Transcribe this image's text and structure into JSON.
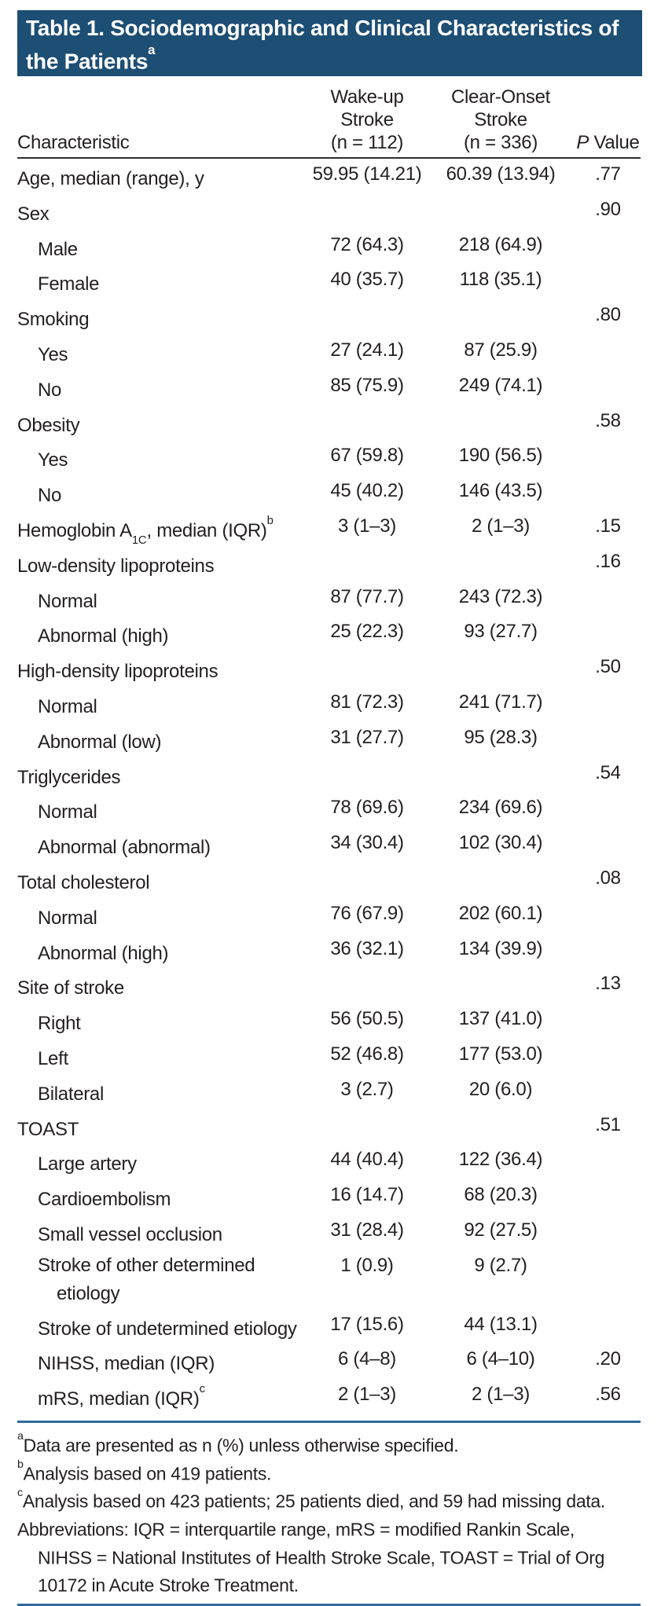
{
  "title": {
    "text": "Table 1. Sociodemographic and Clinical Characteristics of the Patients",
    "sup": "a"
  },
  "columns": {
    "characteristic": "Characteristic",
    "wakeup": [
      "Wake-up",
      "Stroke",
      "(n = 112)"
    ],
    "clear": [
      "Clear-Onset",
      "Stroke",
      "(n = 336)"
    ],
    "pvalue": {
      "italic": "P",
      "rest": " Value"
    }
  },
  "table": {
    "rows": [
      {
        "label": "Age, median (range), y",
        "c2": "59.95 (14.21)",
        "c3": "60.39 (13.94)",
        "p": ".77",
        "indent": 0
      },
      {
        "label": "Sex",
        "c2": "",
        "c3": "",
        "p": ".90",
        "indent": 0
      },
      {
        "label": "Male",
        "c2": "72 (64.3)",
        "c3": "218 (64.9)",
        "p": "",
        "indent": 1
      },
      {
        "label": "Female",
        "c2": "40 (35.7)",
        "c3": "118 (35.1)",
        "p": "",
        "indent": 1
      },
      {
        "label": "Smoking",
        "c2": "",
        "c3": "",
        "p": ".80",
        "indent": 0
      },
      {
        "label": "Yes",
        "c2": "27 (24.1)",
        "c3": "87 (25.9)",
        "p": "",
        "indent": 1
      },
      {
        "label": "No",
        "c2": "85 (75.9)",
        "c3": "249 (74.1)",
        "p": "",
        "indent": 1
      },
      {
        "label": "Obesity",
        "c2": "",
        "c3": "",
        "p": ".58",
        "indent": 0
      },
      {
        "label": "Yes",
        "c2": "67 (59.8)",
        "c3": "190 (56.5)",
        "p": "",
        "indent": 1
      },
      {
        "label": "No",
        "c2": "45 (40.2)",
        "c3": "146 (43.5)",
        "p": "",
        "indent": 1
      },
      {
        "label": "Hemoglobin A",
        "sub": "1C",
        "label2": ", median (IQR)",
        "sup": "b",
        "c2": "3 (1–3)",
        "c3": "2 (1–3)",
        "p": ".15",
        "indent": 0
      },
      {
        "label": "Low-density lipoproteins",
        "c2": "",
        "c3": "",
        "p": ".16",
        "indent": 0
      },
      {
        "label": "Normal",
        "c2": "87 (77.7)",
        "c3": "243 (72.3)",
        "p": "",
        "indent": 1
      },
      {
        "label": "Abnormal (high)",
        "c2": "25 (22.3)",
        "c3": "93 (27.7)",
        "p": "",
        "indent": 1
      },
      {
        "label": "High-density lipoproteins",
        "c2": "",
        "c3": "",
        "p": ".50",
        "indent": 0
      },
      {
        "label": "Normal",
        "c2": "81 (72.3)",
        "c3": "241 (71.7)",
        "p": "",
        "indent": 1
      },
      {
        "label": "Abnormal (low)",
        "c2": "31 (27.7)",
        "c3": "95 (28.3)",
        "p": "",
        "indent": 1
      },
      {
        "label": "Triglycerides",
        "c2": "",
        "c3": "",
        "p": ".54",
        "indent": 0
      },
      {
        "label": "Normal",
        "c2": "78 (69.6)",
        "c3": "234 (69.6)",
        "p": "",
        "indent": 1
      },
      {
        "label": "Abnormal (abnormal)",
        "c2": "34 (30.4)",
        "c3": "102 (30.4)",
        "p": "",
        "indent": 1
      },
      {
        "label": "Total cholesterol",
        "c2": "",
        "c3": "",
        "p": ".08",
        "indent": 0
      },
      {
        "label": "Normal",
        "c2": "76 (67.9)",
        "c3": "202 (60.1)",
        "p": "",
        "indent": 1
      },
      {
        "label": "Abnormal (high)",
        "c2": "36 (32.1)",
        "c3": "134 (39.9)",
        "p": "",
        "indent": 1
      },
      {
        "label": "Site of stroke",
        "c2": "",
        "c3": "",
        "p": ".13",
        "indent": 0
      },
      {
        "label": "Right",
        "c2": "56 (50.5)",
        "c3": "137 (41.0)",
        "p": "",
        "indent": 1
      },
      {
        "label": "Left",
        "c2": "52 (46.8)",
        "c3": "177 (53.0)",
        "p": "",
        "indent": 1
      },
      {
        "label": "Bilateral",
        "c2": "3 (2.7)",
        "c3": "20 (6.0)",
        "p": "",
        "indent": 1
      },
      {
        "label": "TOAST",
        "c2": "",
        "c3": "",
        "p": ".51",
        "indent": 0
      },
      {
        "label": "Large artery",
        "c2": "44 (40.4)",
        "c3": "122 (36.4)",
        "p": "",
        "indent": 1
      },
      {
        "label": "Cardioembolism",
        "c2": "16 (14.7)",
        "c3": "68 (20.3)",
        "p": "",
        "indent": 1
      },
      {
        "label": "Small vessel occlusion",
        "c2": "31 (28.4)",
        "c3": "92 (27.5)",
        "p": "",
        "indent": 1
      },
      {
        "label": "Stroke of other determined etiology",
        "c2": "1 (0.9)",
        "c3": "9 (2.7)",
        "p": "",
        "indent": 1
      },
      {
        "label": "Stroke of undetermined etiology",
        "c2": "17 (15.6)",
        "c3": "44 (13.1)",
        "p": "",
        "indent": 1
      },
      {
        "label": "NIHSS, median (IQR)",
        "c2": "6 (4–8)",
        "c3": "6 (4–10)",
        "p": ".20",
        "indent": 1
      },
      {
        "label": "mRS, median (IQR)",
        "sup": "c",
        "c2": "2 (1–3)",
        "c3": "2 (1–3)",
        "p": ".56",
        "indent": 1
      }
    ]
  },
  "footnotes": [
    {
      "marker": "a",
      "text": "Data are presented as n (%) unless otherwise specified.",
      "indent": 0
    },
    {
      "marker": "b",
      "text": "Analysis based on 419 patients.",
      "indent": 0
    },
    {
      "marker": "c",
      "text": "Analysis based on 423 patients; 25 patients died, and 59 had missing data.",
      "indent": 0
    },
    {
      "marker": "",
      "text": "Abbreviations: IQR = interquartile range, mRS = modified Rankin Scale,",
      "indent": 0
    },
    {
      "marker": "",
      "text": "NIHSS = National Institutes of Health Stroke Scale, TOAST = Trial of Org",
      "indent": 1
    },
    {
      "marker": "",
      "text": "10172 in Acute Stroke Treatment.",
      "indent": 1
    }
  ],
  "colors": {
    "header_bg": "#1d4e74",
    "rule_dark": "#2e2e2e",
    "rule_blue": "#2f6a9e",
    "text": "#231f20"
  }
}
